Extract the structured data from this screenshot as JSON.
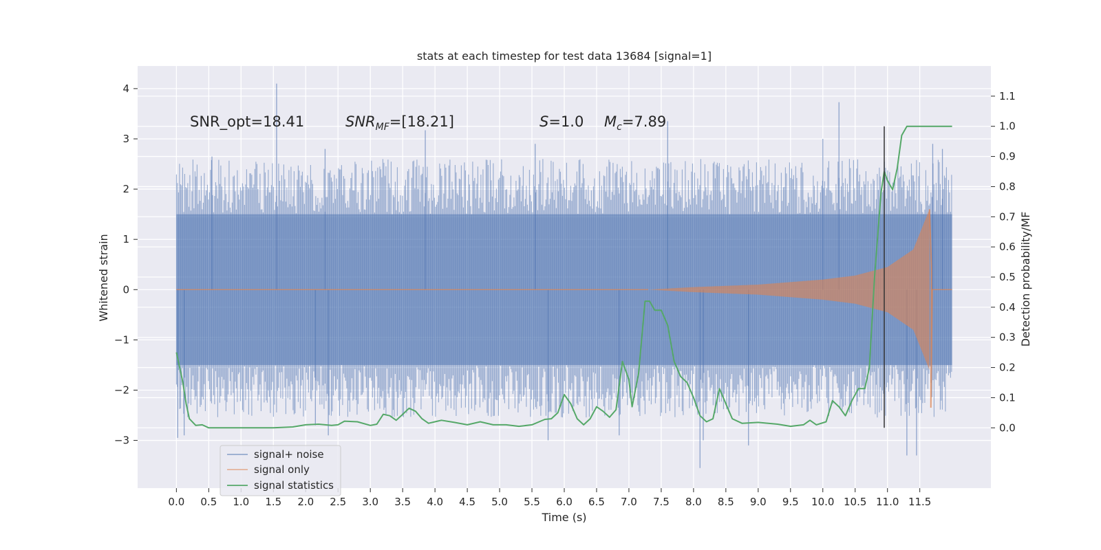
{
  "chart_data": {
    "type": "line",
    "title": "stats at each timestep for test data 13684 [signal=1]",
    "xlabel": "Time (s)",
    "ylabel_left": "Whitened strain",
    "ylabel_right": "Detection probability/MF",
    "xlim": [
      -0.6,
      12.6
    ],
    "ylim_left": [
      -3.95,
      4.45
    ],
    "ylim_right": [
      -0.2,
      1.2
    ],
    "xticks": [
      "0.0",
      "0.5",
      "1.0",
      "1.5",
      "2.0",
      "2.5",
      "3.0",
      "3.5",
      "4.0",
      "4.5",
      "5.0",
      "5.5",
      "6.0",
      "6.5",
      "7.0",
      "7.5",
      "8.0",
      "8.5",
      "9.0",
      "9.5",
      "10.0",
      "10.5",
      "11.0",
      "11.5"
    ],
    "yticks_left": [
      "−3",
      "−2",
      "−1",
      "0",
      "1",
      "2",
      "3",
      "4"
    ],
    "yticks_right": [
      "0.0",
      "0.1",
      "0.2",
      "0.3",
      "0.4",
      "0.5",
      "0.6",
      "0.7",
      "0.8",
      "0.9",
      "1.0",
      "1.1"
    ],
    "annotations": {
      "snr_opt": "SNR_opt=18.41",
      "snr_mf_main": "SNR",
      "snr_mf_sub": "MF",
      "snr_mf_rest": "=[18.21]",
      "s_main": "S",
      "s_rest": "=1.0",
      "mc_main": "M",
      "mc_sub": "c",
      "mc_rest": "=7.89"
    },
    "grid": true,
    "legend_position": "lower-left",
    "vertical_line_x": 10.95,
    "colors": {
      "background": "#eaeaf2",
      "grid": "#ffffff",
      "noise": "#4c72b0",
      "signal": "#dd8452",
      "stats": "#55a868",
      "vline": "#333333"
    },
    "series": [
      {
        "name": "signal+ noise",
        "kind": "strain",
        "t_range": [
          0.0,
          12.0
        ],
        "band": [
          -1.5,
          1.5
        ],
        "typical_extremes": [
          -2.6,
          2.6
        ],
        "spikes": [
          {
            "t": 0.02,
            "v": -2.95
          },
          {
            "t": 0.12,
            "v": -2.9
          },
          {
            "t": 0.55,
            "v": 2.65
          },
          {
            "t": 1.55,
            "v": 4.1
          },
          {
            "t": 2.15,
            "v": -2.7
          },
          {
            "t": 2.3,
            "v": 2.8
          },
          {
            "t": 2.35,
            "v": -2.9
          },
          {
            "t": 3.85,
            "v": 3.17
          },
          {
            "t": 5.55,
            "v": 2.9
          },
          {
            "t": 5.75,
            "v": -3.0
          },
          {
            "t": 6.85,
            "v": -2.9
          },
          {
            "t": 7.6,
            "v": 3.35
          },
          {
            "t": 8.1,
            "v": -3.55
          },
          {
            "t": 8.15,
            "v": -3.0
          },
          {
            "t": 8.85,
            "v": -3.1
          },
          {
            "t": 10.0,
            "v": 3.0
          },
          {
            "t": 10.25,
            "v": 3.73
          },
          {
            "t": 11.3,
            "v": -3.3
          },
          {
            "t": 11.45,
            "v": -3.3
          },
          {
            "t": 11.7,
            "v": 2.9
          },
          {
            "t": 11.85,
            "v": 2.8
          }
        ]
      },
      {
        "name": "signal only",
        "kind": "chirp",
        "t_start": 7.3,
        "t_peak": 11.65,
        "t_end": 12.0,
        "envelope": [
          {
            "t": 7.3,
            "v": 0.0
          },
          {
            "t": 8.0,
            "v": 0.05
          },
          {
            "t": 9.0,
            "v": 0.1
          },
          {
            "t": 10.0,
            "v": 0.2
          },
          {
            "t": 10.5,
            "v": 0.28
          },
          {
            "t": 11.0,
            "v": 0.45
          },
          {
            "t": 11.4,
            "v": 0.8
          },
          {
            "t": 11.65,
            "v": 1.6
          }
        ]
      },
      {
        "name": "signal statistics",
        "kind": "probability",
        "axis": "right",
        "points": [
          {
            "t": 0.0,
            "v": 0.25
          },
          {
            "t": 0.1,
            "v": 0.15
          },
          {
            "t": 0.15,
            "v": 0.08
          },
          {
            "t": 0.2,
            "v": 0.03
          },
          {
            "t": 0.3,
            "v": 0.008
          },
          {
            "t": 0.4,
            "v": 0.01
          },
          {
            "t": 0.5,
            "v": 0.0
          },
          {
            "t": 0.7,
            "v": 0.0
          },
          {
            "t": 1.0,
            "v": 0.0
          },
          {
            "t": 1.5,
            "v": 0.0
          },
          {
            "t": 1.8,
            "v": 0.003
          },
          {
            "t": 2.0,
            "v": 0.01
          },
          {
            "t": 2.2,
            "v": 0.012
          },
          {
            "t": 2.4,
            "v": 0.008
          },
          {
            "t": 2.5,
            "v": 0.01
          },
          {
            "t": 2.6,
            "v": 0.022
          },
          {
            "t": 2.8,
            "v": 0.02
          },
          {
            "t": 3.0,
            "v": 0.008
          },
          {
            "t": 3.1,
            "v": 0.012
          },
          {
            "t": 3.2,
            "v": 0.045
          },
          {
            "t": 3.3,
            "v": 0.04
          },
          {
            "t": 3.4,
            "v": 0.025
          },
          {
            "t": 3.5,
            "v": 0.045
          },
          {
            "t": 3.6,
            "v": 0.065
          },
          {
            "t": 3.7,
            "v": 0.055
          },
          {
            "t": 3.8,
            "v": 0.03
          },
          {
            "t": 3.9,
            "v": 0.015
          },
          {
            "t": 4.0,
            "v": 0.02
          },
          {
            "t": 4.1,
            "v": 0.025
          },
          {
            "t": 4.3,
            "v": 0.018
          },
          {
            "t": 4.5,
            "v": 0.01
          },
          {
            "t": 4.7,
            "v": 0.02
          },
          {
            "t": 4.9,
            "v": 0.01
          },
          {
            "t": 5.1,
            "v": 0.01
          },
          {
            "t": 5.3,
            "v": 0.005
          },
          {
            "t": 5.5,
            "v": 0.01
          },
          {
            "t": 5.7,
            "v": 0.028
          },
          {
            "t": 5.8,
            "v": 0.03
          },
          {
            "t": 5.9,
            "v": 0.05
          },
          {
            "t": 6.0,
            "v": 0.11
          },
          {
            "t": 6.1,
            "v": 0.08
          },
          {
            "t": 6.2,
            "v": 0.03
          },
          {
            "t": 6.3,
            "v": 0.01
          },
          {
            "t": 6.4,
            "v": 0.03
          },
          {
            "t": 6.5,
            "v": 0.07
          },
          {
            "t": 6.6,
            "v": 0.055
          },
          {
            "t": 6.7,
            "v": 0.035
          },
          {
            "t": 6.8,
            "v": 0.06
          },
          {
            "t": 6.9,
            "v": 0.22
          },
          {
            "t": 7.0,
            "v": 0.16
          },
          {
            "t": 7.05,
            "v": 0.07
          },
          {
            "t": 7.15,
            "v": 0.18
          },
          {
            "t": 7.25,
            "v": 0.42
          },
          {
            "t": 7.32,
            "v": 0.42
          },
          {
            "t": 7.4,
            "v": 0.39
          },
          {
            "t": 7.5,
            "v": 0.39
          },
          {
            "t": 7.6,
            "v": 0.34
          },
          {
            "t": 7.7,
            "v": 0.22
          },
          {
            "t": 7.8,
            "v": 0.17
          },
          {
            "t": 7.9,
            "v": 0.15
          },
          {
            "t": 8.0,
            "v": 0.1
          },
          {
            "t": 8.1,
            "v": 0.04
          },
          {
            "t": 8.2,
            "v": 0.02
          },
          {
            "t": 8.3,
            "v": 0.03
          },
          {
            "t": 8.4,
            "v": 0.13
          },
          {
            "t": 8.5,
            "v": 0.08
          },
          {
            "t": 8.6,
            "v": 0.03
          },
          {
            "t": 8.75,
            "v": 0.015
          },
          {
            "t": 9.0,
            "v": 0.018
          },
          {
            "t": 9.3,
            "v": 0.012
          },
          {
            "t": 9.5,
            "v": 0.005
          },
          {
            "t": 9.7,
            "v": 0.01
          },
          {
            "t": 9.8,
            "v": 0.025
          },
          {
            "t": 9.9,
            "v": 0.01
          },
          {
            "t": 10.05,
            "v": 0.02
          },
          {
            "t": 10.15,
            "v": 0.09
          },
          {
            "t": 10.25,
            "v": 0.07
          },
          {
            "t": 10.35,
            "v": 0.04
          },
          {
            "t": 10.45,
            "v": 0.09
          },
          {
            "t": 10.55,
            "v": 0.13
          },
          {
            "t": 10.65,
            "v": 0.13
          },
          {
            "t": 10.72,
            "v": 0.2
          },
          {
            "t": 10.8,
            "v": 0.5
          },
          {
            "t": 10.9,
            "v": 0.78
          },
          {
            "t": 10.95,
            "v": 0.85
          },
          {
            "t": 11.0,
            "v": 0.82
          },
          {
            "t": 11.08,
            "v": 0.79
          },
          {
            "t": 11.15,
            "v": 0.86
          },
          {
            "t": 11.22,
            "v": 0.97
          },
          {
            "t": 11.3,
            "v": 1.0
          },
          {
            "t": 11.5,
            "v": 1.0
          },
          {
            "t": 12.0,
            "v": 1.0
          }
        ]
      }
    ]
  }
}
